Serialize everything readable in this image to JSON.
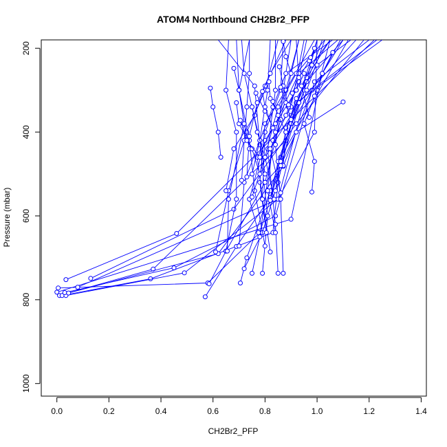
{
  "chart_data": {
    "type": "line",
    "title": "ATOM4 Northbound CH2Br2_PFP",
    "xlabel": "CH2Br2_PFP",
    "ylabel": "Pressure (mbar)",
    "xlim": [
      -0.06,
      1.42
    ],
    "ylim": [
      1030,
      180
    ],
    "y_reversed": true,
    "grid": false,
    "legend": "none",
    "x_ticks": [
      0.0,
      0.2,
      0.4,
      0.6,
      0.8,
      1.0,
      1.2,
      1.4
    ],
    "x_tick_labels": [
      "0.0",
      "0.2",
      "0.4",
      "0.6",
      "0.8",
      "1.0",
      "1.2",
      "1.4"
    ],
    "y_ticks": [
      200,
      400,
      600,
      800,
      1000
    ],
    "y_tick_labels": [
      "200",
      "400",
      "600",
      "800",
      "1000"
    ],
    "series_color": "#0000ff",
    "profiles": [
      {
        "points": [
          [
            0.0,
            782
          ],
          [
            0.9,
            608
          ],
          [
            1.02,
            260
          ],
          [
            1.09,
            180
          ]
        ]
      },
      {
        "points": [
          [
            0.01,
            790
          ],
          [
            0.37,
            727
          ],
          [
            0.88,
            420
          ],
          [
            1.02,
            180
          ]
        ]
      },
      {
        "points": [
          [
            0.005,
            772
          ],
          [
            0.58,
            760
          ],
          [
            0.78,
            640
          ],
          [
            0.95,
            300
          ],
          [
            1.0,
            180
          ]
        ]
      },
      {
        "points": [
          [
            0.02,
            790
          ],
          [
            0.36,
            750
          ],
          [
            0.83,
            640
          ],
          [
            0.86,
            460
          ],
          [
            1.12,
            180
          ]
        ]
      },
      {
        "points": [
          [
            0.035,
            790
          ],
          [
            0.49,
            736
          ],
          [
            0.85,
            560
          ],
          [
            0.96,
            300
          ],
          [
            1.03,
            180
          ]
        ]
      },
      {
        "points": [
          [
            0.03,
            783
          ],
          [
            0.45,
            724
          ],
          [
            0.84,
            600
          ],
          [
            0.99,
            280
          ],
          [
            1.2,
            180
          ]
        ]
      },
      {
        "points": [
          [
            0.035,
            752
          ],
          [
            0.46,
            642
          ],
          [
            0.9,
            370
          ],
          [
            1.22,
            180
          ]
        ]
      },
      {
        "points": [
          [
            0.045,
            784
          ],
          [
            0.62,
            690
          ],
          [
            0.87,
            482
          ],
          [
            0.98,
            300
          ],
          [
            1.23,
            180
          ]
        ]
      },
      {
        "points": [
          [
            0.13,
            749
          ],
          [
            0.68,
            584
          ],
          [
            0.92,
            380
          ],
          [
            1.18,
            180
          ]
        ]
      },
      {
        "points": [
          [
            0.08,
            770
          ],
          [
            0.85,
            560
          ],
          [
            0.99,
            400
          ],
          [
            1.0,
            180
          ]
        ]
      },
      {
        "points": [
          [
            0.57,
            793
          ],
          [
            0.69,
            673
          ],
          [
            0.82,
            556
          ],
          [
            0.9,
            380
          ],
          [
            1.0,
            180
          ]
        ]
      },
      {
        "points": [
          [
            0.585,
            762
          ],
          [
            0.65,
            684
          ],
          [
            0.8,
            520
          ],
          [
            0.86,
            370
          ],
          [
            0.93,
            180
          ]
        ]
      },
      {
        "points": [
          [
            0.705,
            760
          ],
          [
            0.73,
            700
          ],
          [
            0.82,
            540
          ],
          [
            0.9,
            380
          ],
          [
            1.1,
            180
          ]
        ]
      },
      {
        "points": [
          [
            0.72,
            726
          ],
          [
            0.79,
            640
          ],
          [
            0.85,
            520
          ],
          [
            0.92,
            330
          ],
          [
            1.25,
            180
          ]
        ]
      },
      {
        "points": [
          [
            0.75,
            737
          ],
          [
            0.78,
            650
          ],
          [
            0.83,
            420
          ],
          [
            0.88,
            300
          ],
          [
            0.99,
            180
          ]
        ]
      },
      {
        "points": [
          [
            0.79,
            737
          ],
          [
            0.81,
            600
          ],
          [
            0.78,
            430
          ],
          [
            0.76,
            290
          ],
          [
            0.62,
            180
          ]
        ]
      },
      {
        "points": [
          [
            0.85,
            737
          ],
          [
            0.84,
            620
          ],
          [
            0.81,
            440
          ],
          [
            0.84,
            300
          ],
          [
            0.84,
            180
          ]
        ]
      },
      {
        "points": [
          [
            0.87,
            737
          ],
          [
            0.86,
            560
          ],
          [
            0.84,
            430
          ],
          [
            0.87,
            300
          ],
          [
            0.9,
            180
          ]
        ]
      },
      {
        "points": [
          [
            0.65,
            684
          ],
          [
            0.69,
            560
          ],
          [
            0.69,
            400
          ],
          [
            0.65,
            300
          ],
          [
            0.66,
            180
          ]
        ]
      },
      {
        "points": [
          [
            0.655,
            684
          ],
          [
            0.66,
            560
          ],
          [
            0.72,
            380
          ],
          [
            0.7,
            300
          ],
          [
            0.69,
            180
          ]
        ]
      },
      {
        "points": [
          [
            0.61,
            686
          ],
          [
            0.66,
            540
          ],
          [
            0.73,
            400
          ],
          [
            0.8,
            300
          ],
          [
            0.85,
            180
          ]
        ]
      },
      {
        "points": [
          [
            0.7,
            672
          ],
          [
            0.72,
            520
          ],
          [
            0.78,
            420
          ],
          [
            0.81,
            300
          ],
          [
            0.82,
            180
          ]
        ]
      },
      {
        "points": [
          [
            0.8,
            672
          ],
          [
            0.76,
            540
          ],
          [
            0.74,
            420
          ],
          [
            0.7,
            300
          ],
          [
            0.74,
            180
          ]
        ]
      },
      {
        "points": [
          [
            0.82,
            686
          ],
          [
            0.79,
            560
          ],
          [
            0.8,
            400
          ],
          [
            0.86,
            300
          ],
          [
            0.87,
            180
          ]
        ]
      },
      {
        "points": [
          [
            0.84,
            640
          ],
          [
            0.81,
            540
          ],
          [
            0.83,
            420
          ],
          [
            0.9,
            340
          ],
          [
            0.95,
            180
          ]
        ]
      },
      {
        "points": [
          [
            0.775,
            640
          ],
          [
            0.74,
            560
          ],
          [
            0.8,
            420
          ],
          [
            0.92,
            300
          ],
          [
            0.96,
            180
          ]
        ]
      },
      {
        "points": [
          [
            0.805,
            640
          ],
          [
            0.78,
            520
          ],
          [
            0.8,
            380
          ],
          [
            0.88,
            300
          ],
          [
            0.93,
            180
          ]
        ]
      },
      {
        "points": [
          [
            0.75,
            555
          ],
          [
            0.8,
            460
          ],
          [
            0.85,
            340
          ],
          [
            0.92,
            260
          ],
          [
            1.03,
            180
          ]
        ]
      },
      {
        "points": [
          [
            0.79,
            560
          ],
          [
            0.77,
            460
          ],
          [
            0.84,
            380
          ],
          [
            0.93,
            260
          ],
          [
            1.08,
            180
          ]
        ]
      },
      {
        "points": [
          [
            0.82,
            563
          ],
          [
            0.85,
            470
          ],
          [
            0.93,
            330
          ],
          [
            1.15,
            180
          ]
        ]
      },
      {
        "points": [
          [
            0.835,
            560
          ],
          [
            0.8,
            460
          ],
          [
            0.9,
            360
          ],
          [
            0.96,
            270
          ],
          [
            1.05,
            180
          ]
        ]
      },
      {
        "points": [
          [
            0.84,
            540
          ],
          [
            0.86,
            470
          ],
          [
            0.88,
            390
          ],
          [
            0.96,
            280
          ],
          [
            1.1,
            180
          ]
        ]
      },
      {
        "points": [
          [
            0.86,
            545
          ],
          [
            0.82,
            440
          ],
          [
            0.88,
            360
          ],
          [
            0.93,
            280
          ],
          [
            0.92,
            180
          ]
        ]
      },
      {
        "points": [
          [
            0.98,
            543
          ],
          [
            0.99,
            470
          ],
          [
            0.95,
            380
          ],
          [
            1.0,
            300
          ],
          [
            1.05,
            180
          ]
        ]
      },
      {
        "points": [
          [
            0.65,
            540
          ],
          [
            0.68,
            440
          ],
          [
            0.76,
            360
          ],
          [
            0.8,
            290
          ],
          [
            0.88,
            180
          ]
        ]
      },
      {
        "points": [
          [
            0.75,
            500
          ],
          [
            0.78,
            420
          ],
          [
            0.83,
            340
          ],
          [
            0.88,
            260
          ],
          [
            1.06,
            180
          ]
        ]
      },
      {
        "points": [
          [
            0.8,
            500
          ],
          [
            0.78,
            420
          ],
          [
            0.75,
            340
          ],
          [
            0.72,
            260
          ],
          [
            0.71,
            180
          ]
        ]
      },
      {
        "points": [
          [
            0.73,
            507
          ],
          [
            0.74,
            410
          ],
          [
            0.77,
            330
          ],
          [
            0.82,
            260
          ],
          [
            0.9,
            180
          ]
        ]
      },
      {
        "points": [
          [
            0.71,
            515
          ],
          [
            0.72,
            420
          ],
          [
            0.73,
            340
          ],
          [
            0.74,
            260
          ],
          [
            0.74,
            180
          ]
        ]
      },
      {
        "points": [
          [
            0.87,
            480
          ],
          [
            0.88,
            400
          ],
          [
            0.92,
            320
          ],
          [
            1.0,
            240
          ],
          [
            1.13,
            180
          ]
        ]
      },
      {
        "points": [
          [
            0.97,
            365
          ],
          [
            0.94,
            290
          ],
          [
            0.98,
            240
          ],
          [
            1.05,
            180
          ]
        ]
      },
      {
        "points": [
          [
            1.1,
            328
          ],
          [
            0.92,
            400
          ],
          [
            0.86,
            480
          ],
          [
            0.8,
            520
          ]
        ]
      },
      {
        "points": [
          [
            0.59,
            295
          ],
          [
            0.6,
            340
          ],
          [
            0.62,
            400
          ],
          [
            0.63,
            460
          ]
        ]
      },
      {
        "points": [
          [
            0.68,
            248
          ],
          [
            0.7,
            300
          ],
          [
            0.72,
            380
          ],
          [
            0.74,
            440
          ]
        ]
      },
      {
        "points": [
          [
            0.69,
            330
          ],
          [
            0.7,
            380
          ],
          [
            0.75,
            440
          ],
          [
            0.78,
            500
          ]
        ]
      },
      {
        "points": [
          [
            0.705,
            372
          ],
          [
            0.73,
            420
          ],
          [
            0.78,
            460
          ]
        ]
      },
      {
        "points": [
          [
            0.765,
            307
          ],
          [
            0.8,
            350
          ],
          [
            0.84,
            400
          ]
        ]
      },
      {
        "points": [
          [
            0.79,
            303
          ],
          [
            0.8,
            340
          ],
          [
            0.83,
            390
          ]
        ]
      },
      {
        "points": [
          [
            0.815,
            280
          ],
          [
            0.82,
            320
          ],
          [
            0.86,
            370
          ]
        ]
      },
      {
        "points": [
          [
            0.83,
            327
          ],
          [
            0.85,
            360
          ],
          [
            0.88,
            400
          ]
        ]
      },
      {
        "points": [
          [
            0.855,
            244
          ],
          [
            0.87,
            290
          ],
          [
            0.89,
            340
          ]
        ]
      },
      {
        "points": [
          [
            0.86,
            293
          ],
          [
            0.88,
            330
          ],
          [
            0.9,
            370
          ]
        ]
      },
      {
        "points": [
          [
            0.89,
            335
          ],
          [
            0.92,
            300
          ],
          [
            0.95,
            260
          ]
        ]
      },
      {
        "points": [
          [
            0.905,
            307
          ],
          [
            0.93,
            270
          ],
          [
            0.97,
            230
          ]
        ]
      },
      {
        "points": [
          [
            0.975,
            222
          ],
          [
            0.99,
            200
          ],
          [
            1.0,
            180
          ]
        ]
      },
      {
        "points": [
          [
            0.99,
            314
          ],
          [
            1.02,
            260
          ],
          [
            1.06,
            210
          ]
        ]
      },
      {
        "points": [
          [
            0.87,
            184
          ],
          [
            0.88,
            220
          ],
          [
            0.9,
            260
          ]
        ]
      },
      {
        "points": [
          [
            0.75,
            340
          ],
          [
            0.77,
            400
          ],
          [
            0.8,
            460
          ]
        ]
      }
    ]
  }
}
